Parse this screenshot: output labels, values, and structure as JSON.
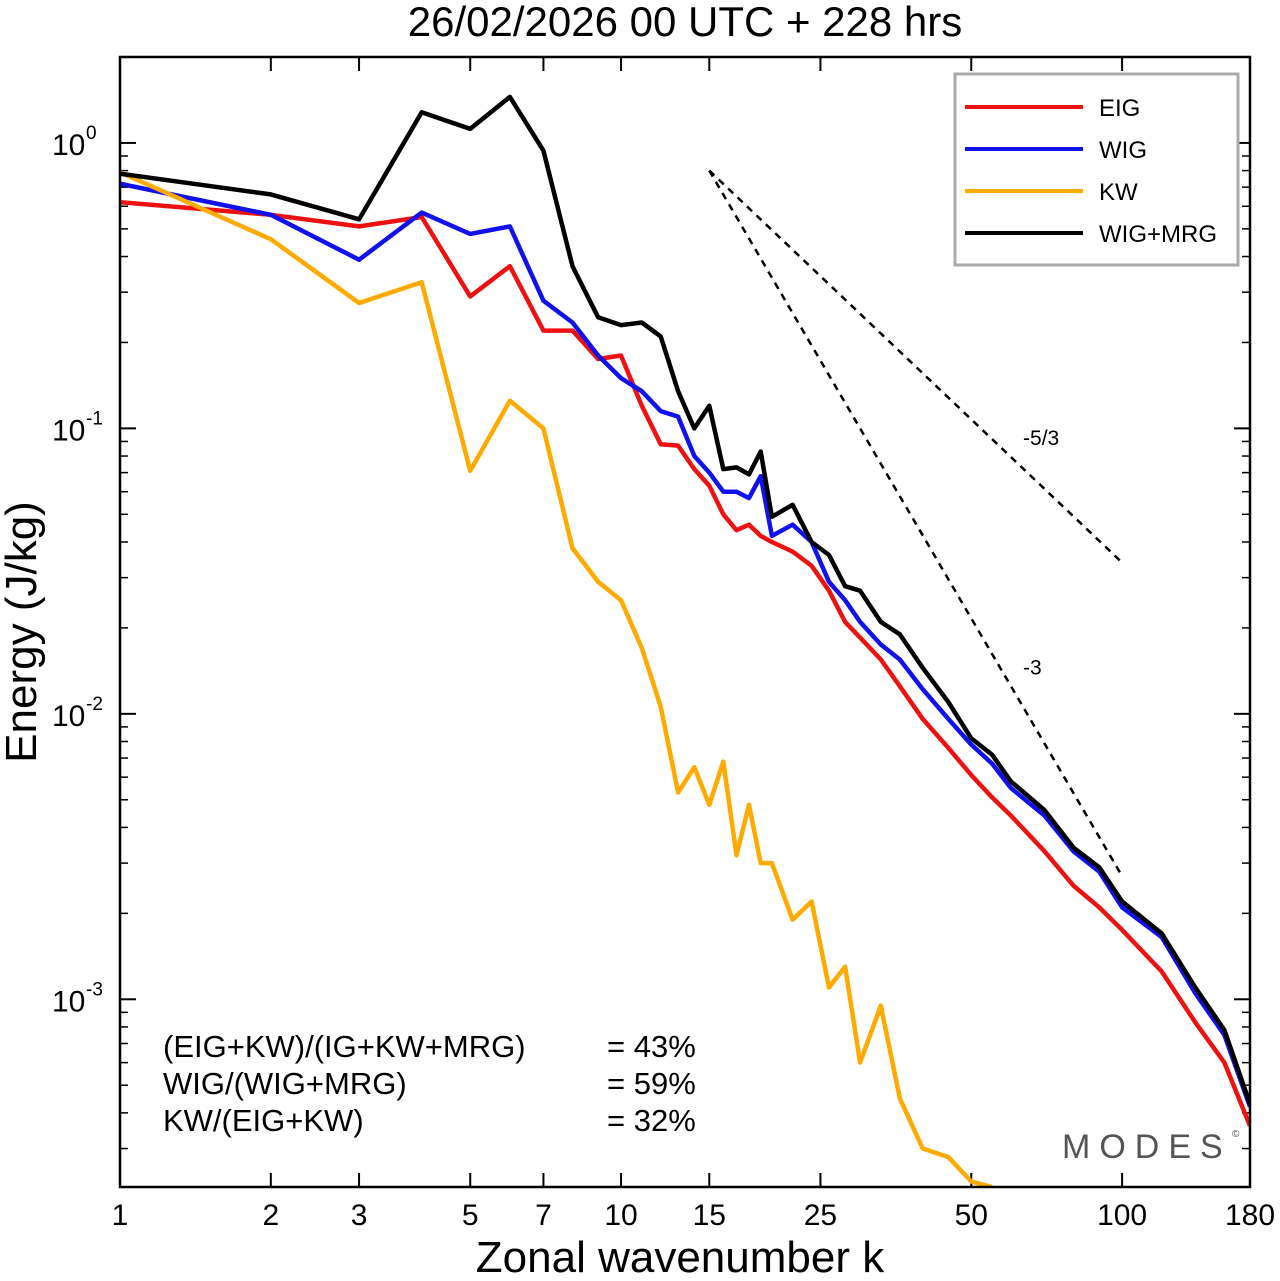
{
  "chart_data": {
    "type": "line",
    "title": "26/02/2026  00 UTC  + 228 hrs",
    "xlabel": "Zonal wavenumber k",
    "ylabel": "Energy (J/kg)",
    "xscale": "log",
    "yscale": "log",
    "xlim": [
      1,
      180
    ],
    "ylim": [
      0.00022,
      2.0
    ],
    "xticks": [
      {
        "value": 1,
        "label": "1"
      },
      {
        "value": 2,
        "label": "2"
      },
      {
        "value": 3,
        "label": "3"
      },
      {
        "value": 5,
        "label": "5"
      },
      {
        "value": 7,
        "label": "7"
      },
      {
        "value": 10,
        "label": "10"
      },
      {
        "value": 15,
        "label": "15"
      },
      {
        "value": 25,
        "label": "25"
      },
      {
        "value": 50,
        "label": "50"
      },
      {
        "value": 100,
        "label": "100"
      },
      {
        "value": 180,
        "label": "180"
      }
    ],
    "yticks": [
      {
        "value": 1,
        "base": "10",
        "exp": "0"
      },
      {
        "value": 0.1,
        "base": "10",
        "exp": "-1"
      },
      {
        "value": 0.01,
        "base": "10",
        "exp": "-2"
      },
      {
        "value": 0.001,
        "base": "10",
        "exp": "-3"
      }
    ],
    "legend_position": "top-right",
    "series": [
      {
        "name": "EIG",
        "color": "#ee1111",
        "x": [
          1,
          2,
          3,
          4,
          5,
          6,
          7,
          8,
          9,
          10,
          11,
          12,
          13,
          14,
          15,
          16,
          17,
          18,
          19,
          20,
          22,
          24,
          26,
          28,
          30,
          33,
          36,
          40,
          45,
          50,
          55,
          60,
          70,
          80,
          90,
          100,
          120,
          140,
          160,
          180
        ],
        "y": [
          0.62,
          0.56,
          0.51,
          0.55,
          0.29,
          0.37,
          0.22,
          0.22,
          0.175,
          0.18,
          0.12,
          0.088,
          0.087,
          0.072,
          0.063,
          0.05,
          0.044,
          0.046,
          0.042,
          0.04,
          0.037,
          0.033,
          0.027,
          0.021,
          0.0185,
          0.0155,
          0.0125,
          0.0096,
          0.0076,
          0.0061,
          0.0051,
          0.0044,
          0.0033,
          0.0025,
          0.0021,
          0.00175,
          0.00125,
          0.00083,
          0.0006,
          0.00036
        ]
      },
      {
        "name": "WIG",
        "color": "#1111ee",
        "x": [
          1,
          2,
          3,
          4,
          5,
          6,
          7,
          8,
          9,
          10,
          11,
          12,
          13,
          14,
          15,
          16,
          17,
          18,
          19,
          20,
          22,
          24,
          26,
          28,
          30,
          33,
          36,
          40,
          45,
          50,
          55,
          60,
          70,
          80,
          90,
          100,
          120,
          140,
          160,
          180
        ],
        "y": [
          0.72,
          0.56,
          0.39,
          0.57,
          0.48,
          0.51,
          0.28,
          0.235,
          0.18,
          0.15,
          0.135,
          0.115,
          0.11,
          0.08,
          0.07,
          0.06,
          0.06,
          0.057,
          0.068,
          0.042,
          0.046,
          0.04,
          0.029,
          0.025,
          0.021,
          0.0175,
          0.0155,
          0.0122,
          0.0096,
          0.0078,
          0.0067,
          0.0055,
          0.0044,
          0.0033,
          0.0028,
          0.0021,
          0.00165,
          0.00105,
          0.00075,
          0.00042
        ]
      },
      {
        "name": "KW",
        "color": "#ffaa00",
        "x": [
          1,
          2,
          3,
          4,
          5,
          6,
          7,
          8,
          9,
          10,
          11,
          12,
          13,
          14,
          15,
          16,
          17,
          18,
          19,
          20,
          22,
          24,
          26,
          28,
          30,
          33,
          36,
          40,
          45,
          50,
          55
        ],
        "y": [
          0.79,
          0.46,
          0.275,
          0.325,
          0.071,
          0.125,
          0.1,
          0.038,
          0.029,
          0.025,
          0.017,
          0.0106,
          0.0053,
          0.0065,
          0.0048,
          0.0068,
          0.0032,
          0.0048,
          0.003,
          0.003,
          0.0019,
          0.0022,
          0.0011,
          0.0013,
          0.0006,
          0.00095,
          0.00045,
          0.0003,
          0.00028,
          0.00023,
          0.00022
        ]
      },
      {
        "name": "WIG+MRG",
        "color": "#000000",
        "x": [
          1,
          2,
          3,
          4,
          5,
          6,
          7,
          8,
          9,
          10,
          11,
          12,
          13,
          14,
          15,
          16,
          17,
          18,
          19,
          20,
          22,
          24,
          26,
          28,
          30,
          33,
          36,
          40,
          45,
          50,
          55,
          60,
          70,
          80,
          90,
          100,
          120,
          140,
          160,
          180
        ],
        "y": [
          0.78,
          0.66,
          0.54,
          1.28,
          1.12,
          1.45,
          0.94,
          0.37,
          0.245,
          0.23,
          0.235,
          0.21,
          0.135,
          0.1,
          0.12,
          0.072,
          0.073,
          0.069,
          0.083,
          0.049,
          0.054,
          0.04,
          0.036,
          0.028,
          0.027,
          0.021,
          0.019,
          0.0145,
          0.011,
          0.0082,
          0.0072,
          0.0058,
          0.0046,
          0.0034,
          0.0029,
          0.0022,
          0.0017,
          0.0011,
          0.00078,
          0.00043
        ]
      }
    ],
    "reference_lines": [
      {
        "label": "-5/3",
        "slope": -1.6667,
        "x": [
          15,
          100
        ],
        "y_start": 0.8
      },
      {
        "label": "-3",
        "slope": -3,
        "x": [
          15,
          100
        ],
        "y_start": 0.8
      }
    ],
    "annotations": [
      {
        "label": "(EIG+KW)/(IG+KW+MRG)",
        "value": "= 43%"
      },
      {
        "label": "WIG/(WIG+MRG)",
        "value": "= 59%"
      },
      {
        "label": "KW/(EIG+KW)",
        "value": "= 32%"
      }
    ],
    "logo": {
      "text": "MODES",
      "mark": "©"
    }
  }
}
